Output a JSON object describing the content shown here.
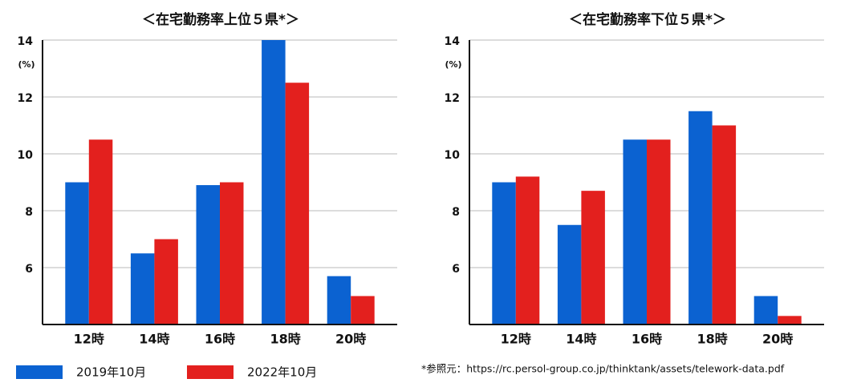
{
  "chart_data": [
    {
      "type": "bar",
      "title": "＜在宅勤務率上位５県*＞",
      "y_unit": "(%)",
      "categories": [
        "12時",
        "14時",
        "16時",
        "18時",
        "20時"
      ],
      "series": [
        {
          "name": "2019年10月",
          "color": "#0b62d1",
          "values": [
            9.0,
            6.5,
            8.9,
            14.0,
            5.7
          ]
        },
        {
          "name": "2022年10月",
          "color": "#e3201e",
          "values": [
            10.5,
            7.0,
            9.0,
            12.5,
            5.0
          ]
        }
      ],
      "ylim": [
        4,
        14
      ],
      "yticks": [
        6,
        8,
        10,
        12,
        14
      ],
      "grid": true
    },
    {
      "type": "bar",
      "title": "＜在宅勤務率下位５県*＞",
      "y_unit": "(%)",
      "categories": [
        "12時",
        "14時",
        "16時",
        "18時",
        "20時"
      ],
      "series": [
        {
          "name": "2019年10月",
          "color": "#0b62d1",
          "values": [
            9.0,
            7.5,
            10.5,
            11.5,
            5.0
          ]
        },
        {
          "name": "2022年10月",
          "color": "#e3201e",
          "values": [
            9.2,
            8.7,
            10.5,
            11.0,
            4.3
          ]
        }
      ],
      "ylim": [
        4,
        14
      ],
      "yticks": [
        6,
        8,
        10,
        12,
        14
      ],
      "grid": true
    }
  ],
  "source": "*参照元：https://rc.persol-group.co.jp/thinktank/assets/telework-data.pdf"
}
